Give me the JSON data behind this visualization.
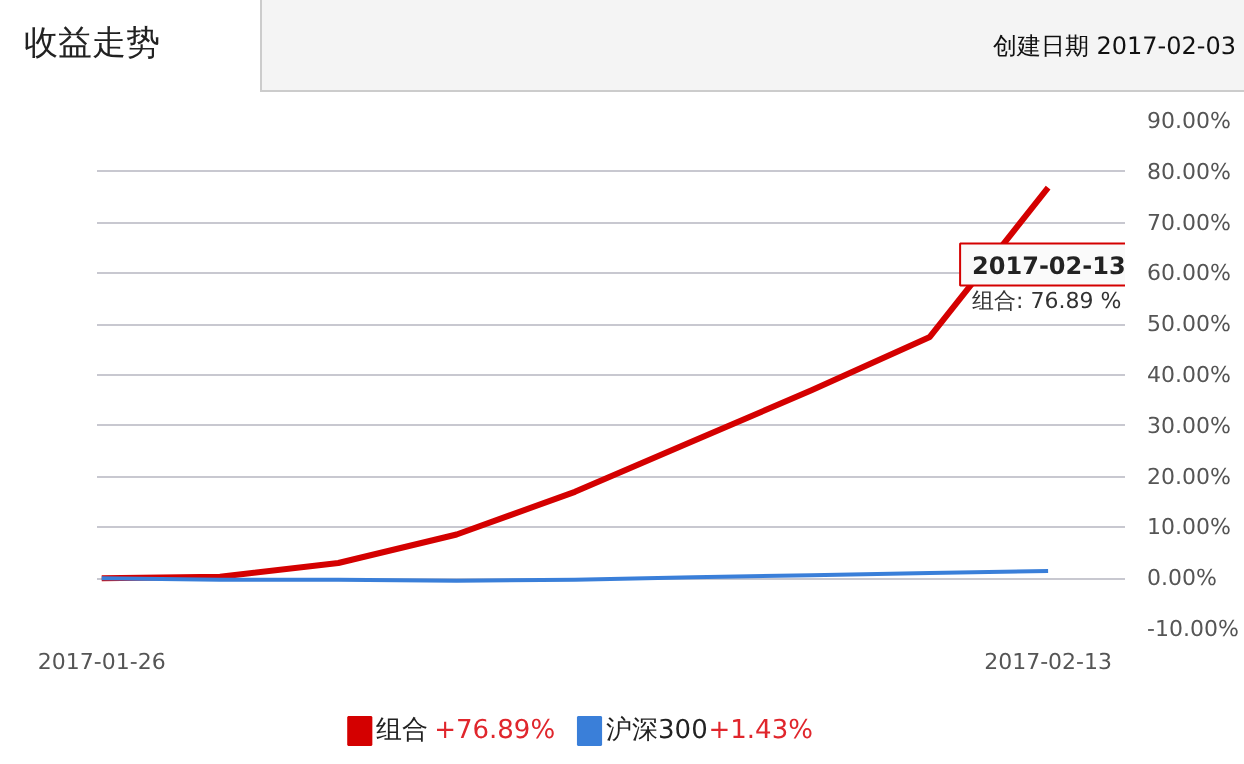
{
  "chart_data": {
    "type": "line",
    "title": "收益走势",
    "categories": [
      "2017-01-26",
      null,
      null,
      null,
      null,
      null,
      null,
      null,
      "2017-02-13"
    ],
    "series": [
      {
        "name": "组合",
        "color": "#d40000",
        "values": [
          0,
          0.3,
          3,
          8.6,
          17,
          27,
          37,
          47.5,
          76.89
        ]
      },
      {
        "name": "沪深300",
        "color": "#3a7fd9",
        "values": [
          0,
          -0.3,
          -0.3,
          -0.5,
          -0.3,
          0.2,
          0.6,
          1.0,
          1.43
        ]
      }
    ],
    "ylim": [
      -10,
      90
    ],
    "yticks": [
      {
        "value": -10,
        "label": "-10.00%"
      },
      {
        "value": 0,
        "label": "0.00%"
      },
      {
        "value": 10,
        "label": "10.00%"
      },
      {
        "value": 20,
        "label": "20.00%"
      },
      {
        "value": 30,
        "label": "30.00%"
      },
      {
        "value": 40,
        "label": "40.00%"
      },
      {
        "value": 50,
        "label": "50.00%"
      },
      {
        "value": 60,
        "label": "60.00%"
      },
      {
        "value": 70,
        "label": "70.00%"
      },
      {
        "value": 80,
        "label": "80.00%"
      },
      {
        "value": 90,
        "label": "90.00%"
      }
    ],
    "grid": "y",
    "legend": "bottom",
    "line_style": "solid",
    "marker": "none",
    "annotations": [
      "创建日期   2017-02-03",
      {
        "text": "2017-02-13\n组合: 76.89 %",
        "x": "2017-02-13",
        "y": 76.89
      },
      "+76.89%",
      "+1.43%"
    ]
  }
}
